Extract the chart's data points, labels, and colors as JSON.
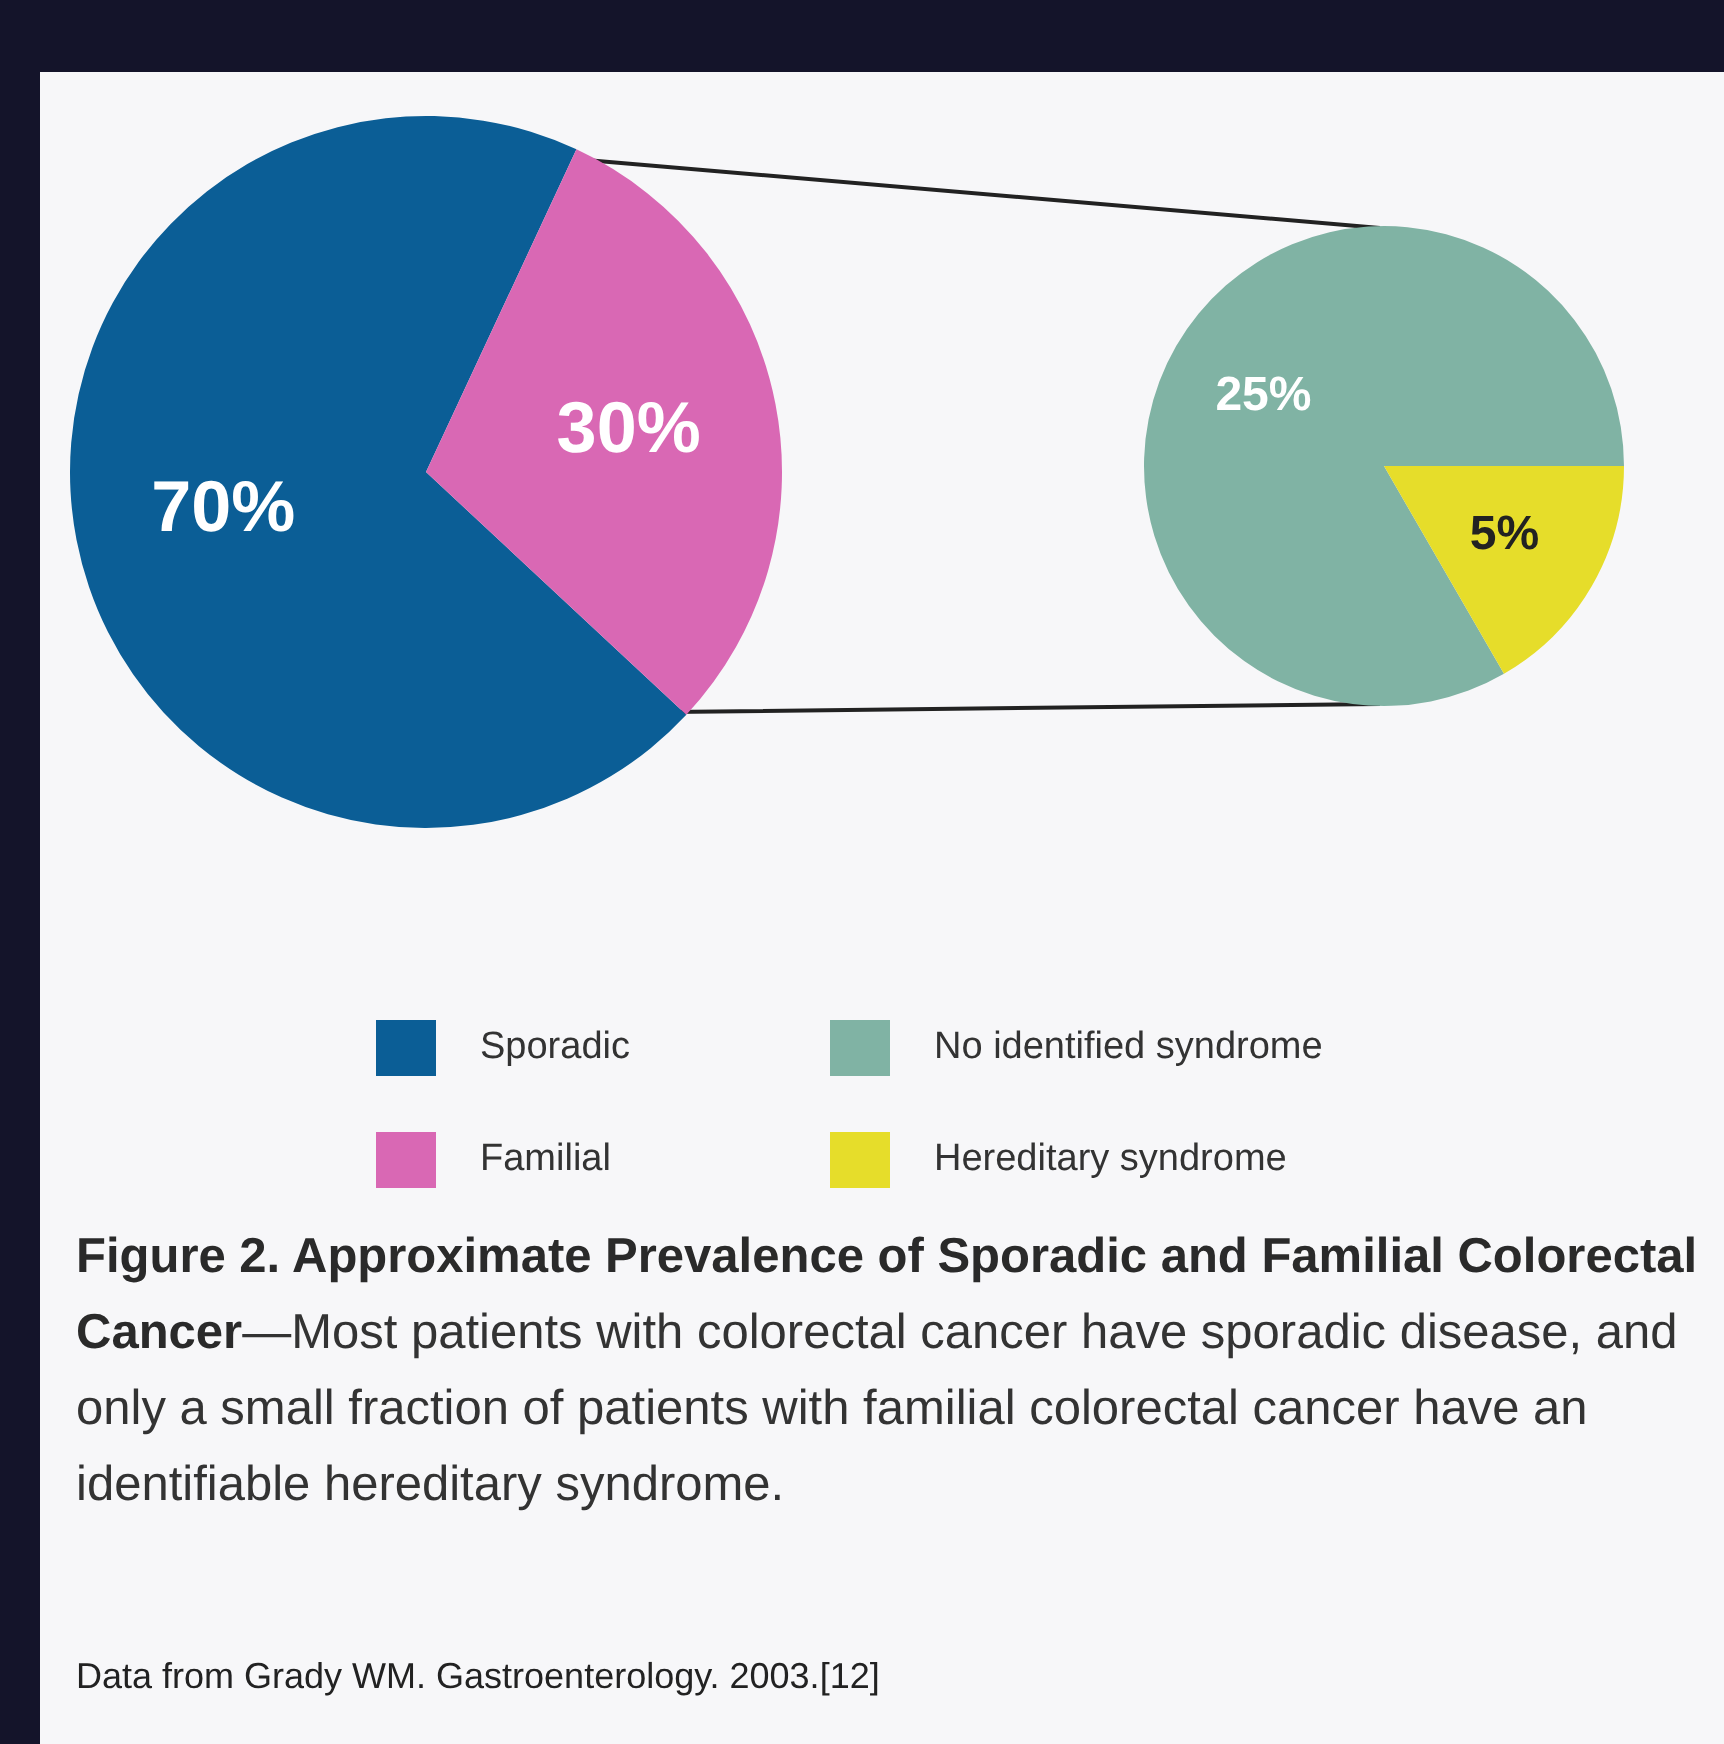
{
  "chart_data": [
    {
      "type": "pie",
      "title": "Figure 2. Approximate Prevalence of Sporadic and Familial Colorectal Cancer",
      "subtitle": "—Most patients with colorectal cancer have sporadic disease, and only a small fraction of patients with familial colorectal cancer have an identifiable hereditary syndrome.",
      "annotations": [
        "Data from Grady WM. Gastroenterology. 2003.[12]"
      ],
      "categories": [
        "Sporadic",
        "Familial"
      ],
      "values": [
        70,
        30
      ],
      "colors": [
        "#0b5e96",
        "#d968b4"
      ],
      "value_labels": [
        "70%",
        "30%"
      ],
      "legend": "bottom"
    },
    {
      "type": "pie",
      "categories": [
        "No identified syndrome",
        "Hereditary syndrome"
      ],
      "values": [
        25,
        5
      ],
      "colors": [
        "#80b3a4",
        "#e6dd2a"
      ],
      "value_labels": [
        "25%",
        "5%"
      ],
      "legend": "bottom"
    }
  ]
}
